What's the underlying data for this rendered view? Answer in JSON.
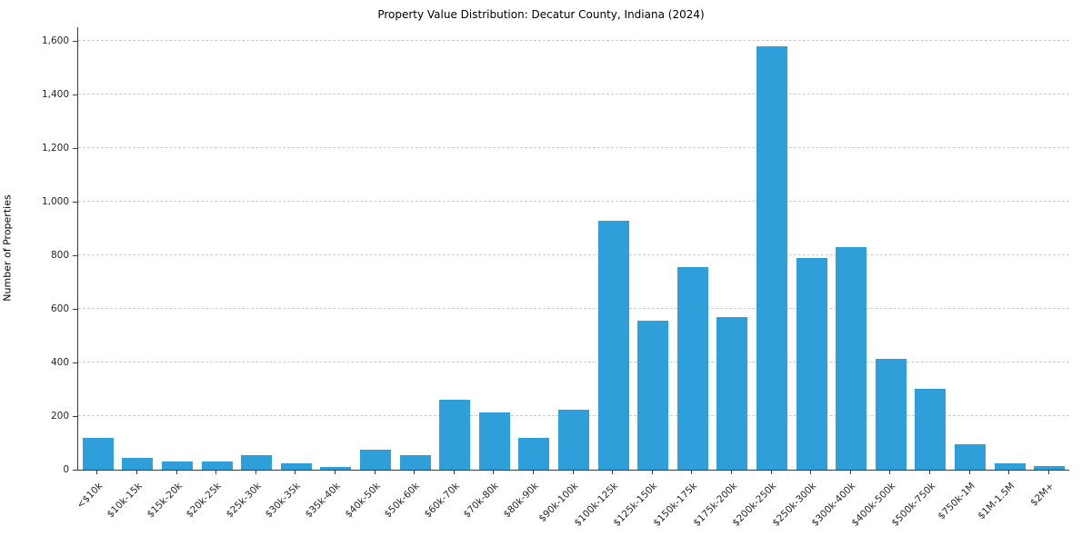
{
  "chart_data": {
    "type": "bar",
    "title": "Property Value Distribution: Decatur County, Indiana (2024)",
    "xlabel": "",
    "ylabel": "Number of Properties",
    "categories": [
      "<$10k",
      "$10k-15k",
      "$15k-20k",
      "$20k-25k",
      "$25k-30k",
      "$30k-35k",
      "$35k-40k",
      "$40k-50k",
      "$50k-60k",
      "$60k-70k",
      "$70k-80k",
      "$80k-90k",
      "$90k-100k",
      "$100k-125k",
      "$125k-150k",
      "$150k-175k",
      "$175k-200k",
      "$200k-250k",
      "$250k-300k",
      "$300k-400k",
      "$400k-500k",
      "$500k-750k",
      "$750k-1M",
      "$1M-1.5M",
      "$2M+"
    ],
    "values": [
      120,
      45,
      30,
      30,
      55,
      25,
      10,
      75,
      55,
      260,
      215,
      120,
      225,
      930,
      555,
      755,
      570,
      1580,
      790,
      830,
      415,
      300,
      95,
      25,
      12
    ],
    "yticks": [
      0,
      200,
      400,
      600,
      800,
      1000,
      1200,
      1400,
      1600
    ],
    "ylim": [
      0,
      1650
    ],
    "grid": true,
    "legend": "none",
    "bar_color": "#2e9fd8",
    "grid_color": "#cccccc",
    "axis_color": "#3a3a3a"
  }
}
